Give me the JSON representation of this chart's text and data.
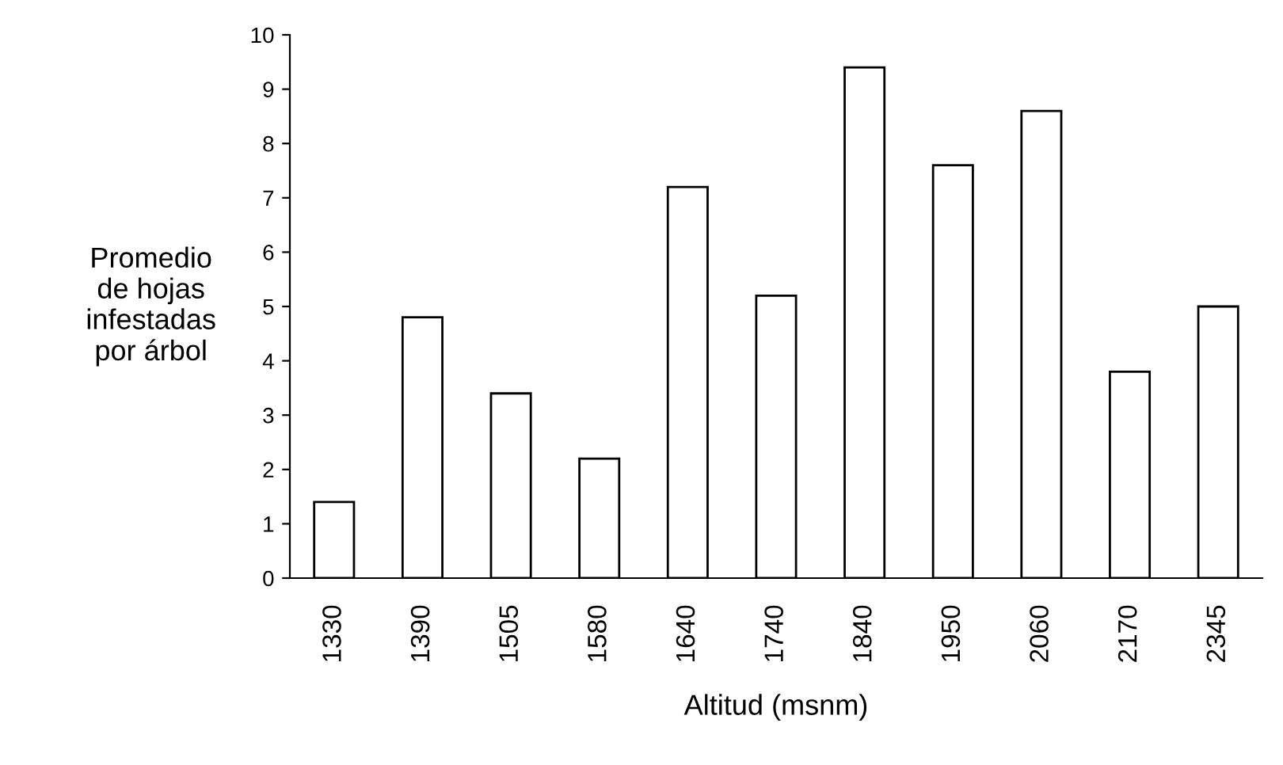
{
  "chart_data": {
    "type": "bar",
    "xlabel": "Altitud (msnm)",
    "ylabel": "Promedio\nde hojas\ninfestadas\npor árbol",
    "categories": [
      "1330",
      "1390",
      "1505",
      "1580",
      "1640",
      "1740",
      "1840",
      "1950",
      "2060",
      "2170",
      "2345"
    ],
    "values": [
      1.4,
      4.8,
      3.4,
      2.2,
      7.2,
      5.2,
      9.4,
      7.6,
      8.6,
      3.8,
      5.0
    ],
    "color": "#ffffff",
    "ylim": [
      0,
      10
    ],
    "yticks": [
      0,
      1,
      2,
      3,
      4,
      5,
      6,
      7,
      8,
      9,
      10
    ],
    "grid": false,
    "legend": false
  }
}
